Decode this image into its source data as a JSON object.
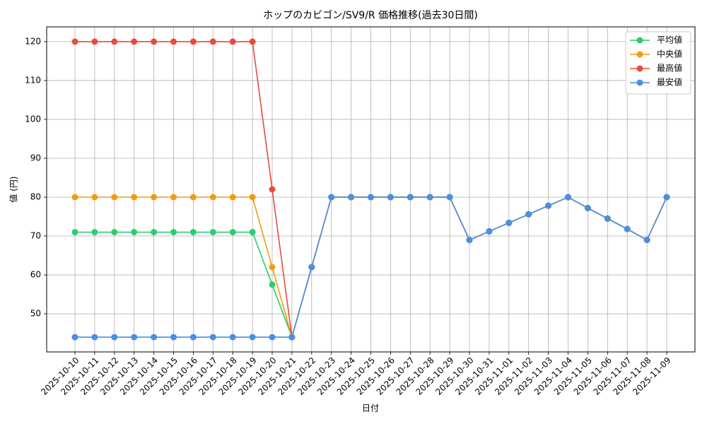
{
  "chart_data": {
    "type": "line",
    "title": "ホップのカビゴン/SV9/R 価格推移(過去30日間)",
    "x_label": "日付",
    "y_label": "値 (円)",
    "categories": [
      "2025-10-10",
      "2025-10-11",
      "2025-10-12",
      "2025-10-13",
      "2025-10-14",
      "2025-10-15",
      "2025-10-16",
      "2025-10-17",
      "2025-10-18",
      "2025-10-19",
      "2025-10-20",
      "2025-10-21",
      "2025-10-22",
      "2025-10-23",
      "2025-10-24",
      "2025-10-25",
      "2025-10-26",
      "2025-10-27",
      "2025-10-28",
      "2025-10-29",
      "2025-10-30",
      "2025-10-31",
      "2025-11-01",
      "2025-11-02",
      "2025-11-03",
      "2025-11-04",
      "2025-11-05",
      "2025-11-06",
      "2025-11-07",
      "2025-11-08",
      "2025-11-09"
    ],
    "series": [
      {
        "name": "平均値",
        "color": "#2ecc71",
        "values": [
          71,
          71,
          71,
          71,
          71,
          71,
          71,
          71,
          71,
          71,
          57.5,
          44,
          62,
          80,
          80,
          80,
          80,
          80,
          80,
          80,
          69,
          71.2,
          73.4,
          75.6,
          77.8,
          80,
          77.2,
          74.5,
          71.8,
          69,
          80
        ]
      },
      {
        "name": "中央値",
        "color": "#f39c12",
        "values": [
          80,
          80,
          80,
          80,
          80,
          80,
          80,
          80,
          80,
          80,
          62,
          44,
          62,
          80,
          80,
          80,
          80,
          80,
          80,
          80,
          69,
          71.2,
          73.4,
          75.6,
          77.8,
          80,
          77.2,
          74.5,
          71.8,
          69,
          80
        ]
      },
      {
        "name": "最高値",
        "color": "#e74c3c",
        "values": [
          120,
          120,
          120,
          120,
          120,
          120,
          120,
          120,
          120,
          120,
          82,
          44,
          62,
          80,
          80,
          80,
          80,
          80,
          80,
          80,
          69,
          71.2,
          73.4,
          75.6,
          77.8,
          80,
          77.2,
          74.5,
          71.8,
          69,
          80
        ]
      },
      {
        "name": "最安値",
        "color": "#4a90e2",
        "values": [
          44,
          44,
          44,
          44,
          44,
          44,
          44,
          44,
          44,
          44,
          44,
          44,
          62,
          80,
          80,
          80,
          80,
          80,
          80,
          80,
          69,
          71.2,
          73.4,
          75.6,
          77.8,
          80,
          77.2,
          74.5,
          71.8,
          69,
          80
        ]
      }
    ],
    "ylim": [
      40.2,
      123.8
    ],
    "yticks": [
      50,
      60,
      70,
      80,
      90,
      100,
      110,
      120
    ],
    "grid": true,
    "legend": "upper-right"
  }
}
